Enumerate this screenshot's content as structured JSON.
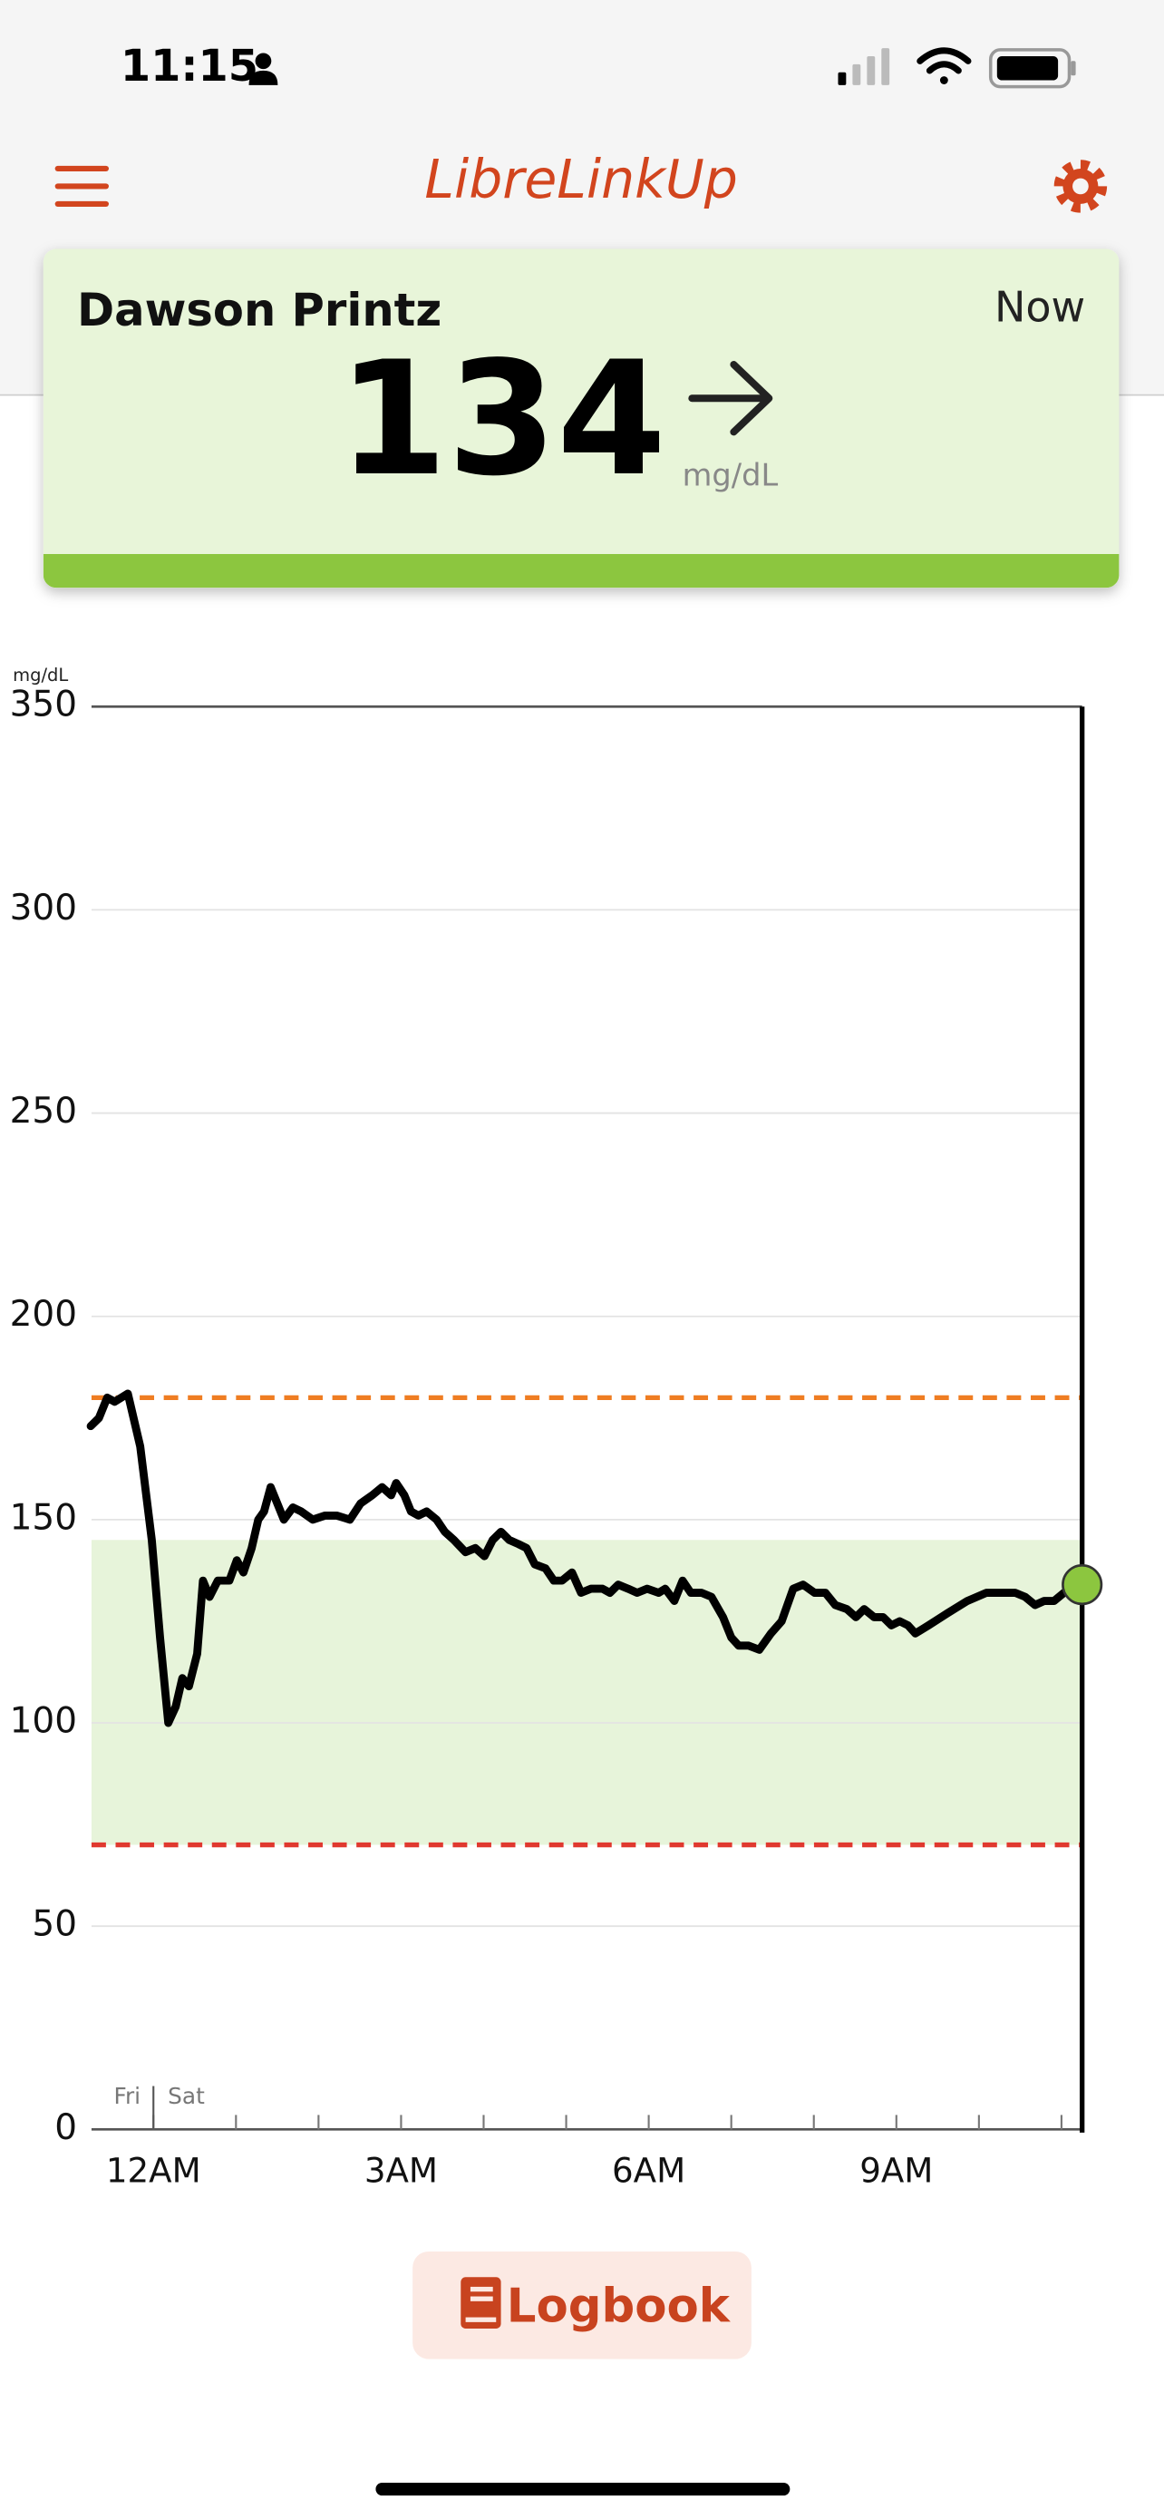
{
  "status_bar": {
    "time": "11:15"
  },
  "header": {
    "title": "LibreLinkUp"
  },
  "card": {
    "name": "Dawson Printz",
    "timestamp": "Now",
    "value": 134,
    "unit": "mg/dL"
  },
  "chart_data": {
    "type": "line",
    "y_unit": "mg/dL",
    "x": [
      -0.76,
      -0.66,
      -0.56,
      -0.47,
      -0.31,
      -0.16,
      -0.02,
      0.08,
      0.18,
      0.27,
      0.35,
      0.43,
      0.53,
      0.6,
      0.68,
      0.78,
      0.92,
      1.01,
      1.09,
      1.19,
      1.27,
      1.34,
      1.42,
      1.5,
      1.58,
      1.69,
      1.79,
      1.93,
      2.08,
      2.22,
      2.38,
      2.51,
      2.65,
      2.77,
      2.88,
      2.94,
      3.04,
      3.12,
      3.21,
      3.31,
      3.43,
      3.53,
      3.64,
      3.78,
      3.9,
      4.01,
      4.11,
      4.21,
      4.31,
      4.42,
      4.52,
      4.62,
      4.75,
      4.85,
      4.95,
      5.07,
      5.18,
      5.3,
      5.44,
      5.53,
      5.63,
      5.75,
      5.86,
      5.98,
      6.12,
      6.2,
      6.31,
      6.41,
      6.51,
      6.64,
      6.76,
      6.9,
      7.0,
      7.09,
      7.21,
      7.34,
      7.48,
      7.61,
      7.75,
      7.87,
      8.01,
      8.14,
      8.26,
      8.4,
      8.51,
      8.61,
      8.73,
      8.84,
      8.94,
      9.04,
      9.14,
      9.23,
      9.39,
      9.62,
      9.86,
      10.09,
      10.31,
      10.44,
      10.56,
      10.68,
      10.79,
      10.91,
      11.03,
      11.15,
      11.25
    ],
    "series": [
      {
        "color": "#000000",
        "values": [
          173,
          175,
          180,
          179,
          181,
          168,
          145,
          121,
          100,
          104,
          111,
          109,
          117,
          135,
          131,
          135,
          135,
          140,
          137,
          143,
          150,
          152,
          158,
          154,
          150,
          153,
          152,
          150,
          151,
          151,
          150,
          154,
          156,
          158,
          156,
          159,
          156,
          152,
          151,
          152,
          150,
          147,
          145,
          142,
          143,
          141,
          145,
          147,
          145,
          144,
          143,
          139,
          138,
          135,
          135,
          137,
          132,
          133,
          133,
          132,
          134,
          133,
          132,
          133,
          132,
          133,
          130,
          135,
          132,
          132,
          131,
          126,
          121,
          119,
          119,
          118,
          122,
          125,
          133,
          134,
          132,
          132,
          129,
          128,
          126,
          128,
          126,
          126,
          124,
          125,
          124,
          122,
          124,
          127,
          130,
          132,
          132,
          132,
          131,
          129,
          130,
          130,
          132,
          133,
          134
        ]
      }
    ],
    "xlim": [
      -0.75,
      11.25
    ],
    "ylim": [
      0,
      350
    ],
    "yticks": [
      0,
      50,
      100,
      150,
      200,
      250,
      300,
      350
    ],
    "xticks": [
      {
        "value": 0,
        "label": "12AM"
      },
      {
        "value": 3,
        "label": "3AM"
      },
      {
        "value": 6,
        "label": "6AM"
      },
      {
        "value": 9,
        "label": "9AM"
      }
    ],
    "x_minor_ticks": [
      1,
      2,
      4,
      5,
      7,
      8,
      10,
      11
    ],
    "grid": true,
    "target_range": [
      70,
      145
    ],
    "target_color": "#e7f4da",
    "high_limit": 180,
    "high_color": "#ef7d22",
    "low_limit": 70,
    "low_color": "#e0392f",
    "marker_color": "#8cc63f",
    "day_divider": 0,
    "day_before": "Fri",
    "day_after": "Sat"
  },
  "logbook_button": {
    "label": "Logbook"
  }
}
